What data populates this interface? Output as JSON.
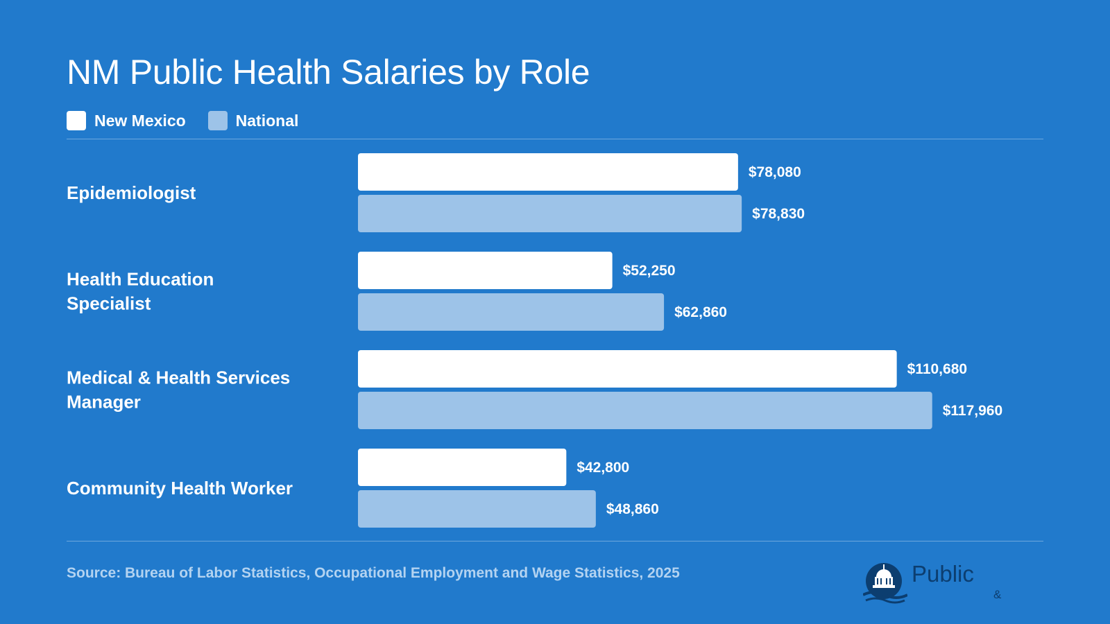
{
  "title": "NM Public Health Salaries by Role",
  "legend": {
    "items": [
      {
        "label": "New Mexico",
        "color": "#ffffff"
      },
      {
        "label": "National",
        "color": "#9dc3e8"
      }
    ]
  },
  "source": "Source: Bureau of Labor Statistics, Occupational Employment and Wage Statistics, 2025",
  "logo": {
    "name": "Public",
    "tagline": "&"
  },
  "colors": {
    "background": "#217acc",
    "new_mexico": "#ffffff",
    "national": "#9dc3e8"
  },
  "chart_data": {
    "type": "bar",
    "orientation": "horizontal",
    "title": "NM Public Health Salaries by Role",
    "categories": [
      [
        "Epidemiologist"
      ],
      [
        "Health Education",
        "Specialist"
      ],
      [
        "Medical & Health Services",
        "Manager"
      ],
      [
        "Community Health Worker"
      ]
    ],
    "series": [
      {
        "name": "New Mexico",
        "values": [
          78080,
          52250,
          110680,
          42800
        ],
        "labels": [
          "$78,080",
          "$52,250",
          "$110,680",
          "$42,800"
        ]
      },
      {
        "name": "National",
        "values": [
          78830,
          62860,
          117960,
          48860
        ],
        "labels": [
          "$78,830",
          "$62,860",
          "$117,960",
          "$48,860"
        ]
      }
    ],
    "xlim": [
      0,
      118000
    ],
    "grid": false,
    "legend_position": "top-left"
  }
}
